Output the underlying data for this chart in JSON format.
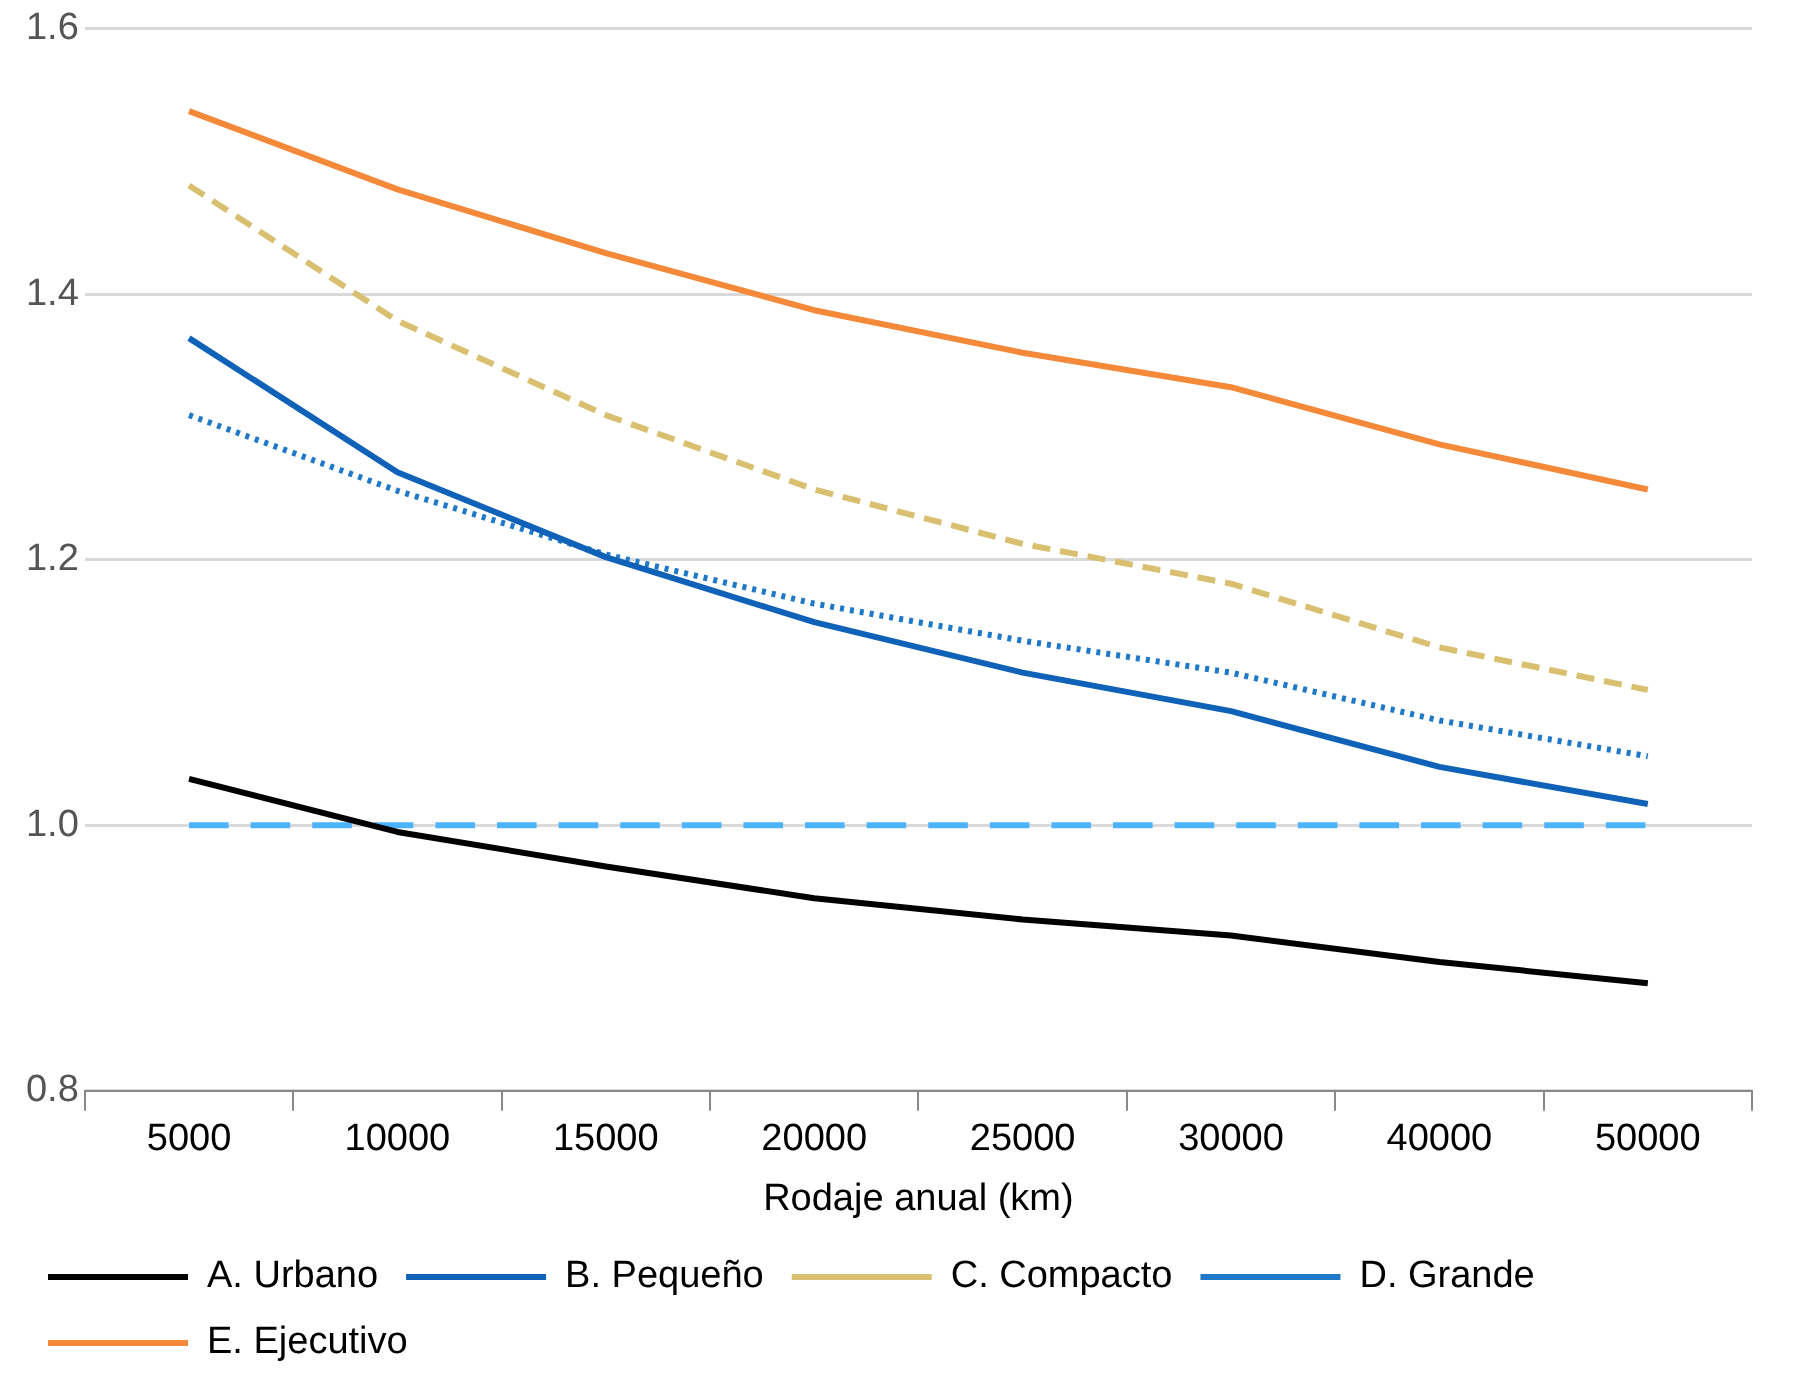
{
  "chart_data": {
    "type": "line",
    "xlabel": "Rodaje anual (km)",
    "categories": [
      "5000",
      "10000",
      "15000",
      "20000",
      "25000",
      "30000",
      "40000",
      "50000"
    ],
    "ylim": [
      0.8,
      1.6
    ],
    "yticks": [
      {
        "value": 0.8,
        "label": "0.8"
      },
      {
        "value": 1.0,
        "label": "1.0"
      },
      {
        "value": 1.2,
        "label": "1.2"
      },
      {
        "value": 1.4,
        "label": "1.4"
      },
      {
        "value": 1.6,
        "label": "1.6"
      }
    ],
    "grid": "y",
    "legend": "bottom",
    "marker": "none",
    "ref_lines": [
      {
        "axis": "y",
        "value": 1.0,
        "color": "#4db3ff",
        "line_style": "dashed"
      }
    ],
    "series": [
      {
        "name": "A. Urbano",
        "color": "#000000",
        "line_style": "solid",
        "values": [
          1.035,
          0.995,
          0.969,
          0.945,
          0.929,
          0.917,
          0.897,
          0.881
        ]
      },
      {
        "name": "B. Pequeño",
        "color": "#0f62b8",
        "line_style": "solid",
        "values": [
          1.367,
          1.266,
          1.202,
          1.153,
          1.115,
          1.086,
          1.044,
          1.016
        ]
      },
      {
        "name": "C. Compacto",
        "color": "#d9bf70",
        "line_style": "dashed",
        "values": [
          1.482,
          1.38,
          1.309,
          1.253,
          1.212,
          1.182,
          1.134,
          1.102
        ]
      },
      {
        "name": "D. Grande",
        "color": "#1f78c8",
        "line_style": "dotted",
        "values": [
          1.309,
          1.252,
          1.204,
          1.167,
          1.139,
          1.115,
          1.079,
          1.052
        ]
      },
      {
        "name": "E. Ejecutivo",
        "color": "#f5893a",
        "line_style": "solid",
        "values": [
          1.538,
          1.479,
          1.431,
          1.388,
          1.356,
          1.33,
          1.287,
          1.253
        ]
      }
    ]
  }
}
